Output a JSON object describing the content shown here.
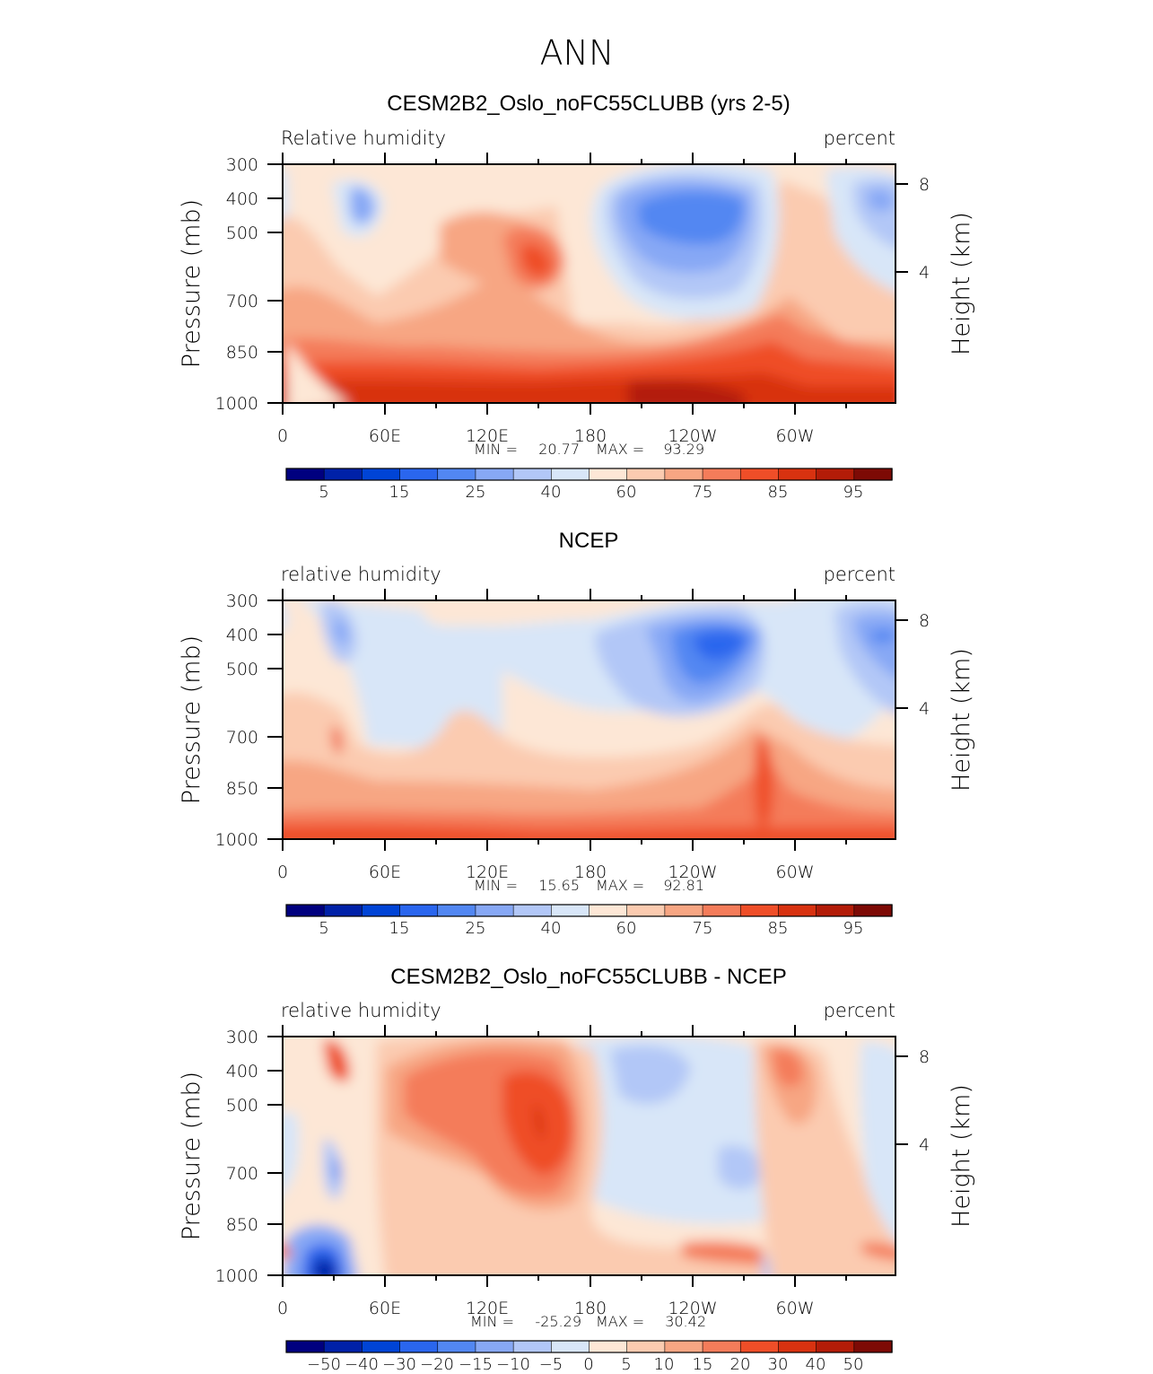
{
  "figure": {
    "title": "ANN"
  },
  "chart_data": [
    {
      "type": "heatmap",
      "title": "CESM2B2_Oslo_noFC55CLUBB (yrs 2-5)",
      "left_label": "Relative  humidity",
      "right_label": "percent",
      "ylabel": "Pressure  (mb)",
      "ylabel_right": "Height  (km)",
      "x_ticks": [
        "0",
        "60E",
        "120E",
        "180",
        "120W",
        "60W"
      ],
      "y_ticks": [
        "300",
        "400",
        "500",
        "700",
        "850",
        "1000"
      ],
      "height_ticks": [
        "8",
        "4"
      ],
      "min_label": "MIN =",
      "min": "20.77",
      "max_label": "MAX =",
      "max": "93.29",
      "colorbar_labels": [
        "5",
        "15",
        "25",
        "40",
        "60",
        "75",
        "85",
        "95"
      ],
      "colors": [
        "#00007f",
        "#0021a8",
        "#0044d6",
        "#2a66ee",
        "#5287f2",
        "#87a8f5",
        "#b2c7f7",
        "#d8e6f8",
        "#fde7d6",
        "#fbcbb0",
        "#f7a683",
        "#f47c5a",
        "#ef4e28",
        "#d83210",
        "#b31c08",
        "#7d0a05"
      ]
    },
    {
      "type": "heatmap",
      "title": "NCEP",
      "left_label": "relative  humidity",
      "right_label": "percent",
      "ylabel": "Pressure  (mb)",
      "ylabel_right": "Height  (km)",
      "x_ticks": [
        "0",
        "60E",
        "120E",
        "180",
        "120W",
        "60W"
      ],
      "y_ticks": [
        "300",
        "400",
        "500",
        "700",
        "850",
        "1000"
      ],
      "height_ticks": [
        "8",
        "4"
      ],
      "min_label": "MIN =",
      "min": "15.65",
      "max_label": "MAX =",
      "max": "92.81",
      "colorbar_labels": [
        "5",
        "15",
        "25",
        "40",
        "60",
        "75",
        "85",
        "95"
      ],
      "colors": [
        "#00007f",
        "#0021a8",
        "#0044d6",
        "#2a66ee",
        "#5287f2",
        "#87a8f5",
        "#b2c7f7",
        "#d8e6f8",
        "#fde7d6",
        "#fbcbb0",
        "#f7a683",
        "#f47c5a",
        "#ef4e28",
        "#d83210",
        "#b31c08",
        "#7d0a05"
      ]
    },
    {
      "type": "heatmap",
      "title": "CESM2B2_Oslo_noFC55CLUBB - NCEP",
      "left_label": "relative  humidity",
      "right_label": "percent",
      "ylabel": "Pressure  (mb)",
      "ylabel_right": "Height  (km)",
      "x_ticks": [
        "0",
        "60E",
        "120E",
        "180",
        "120W",
        "60W"
      ],
      "y_ticks": [
        "300",
        "400",
        "500",
        "700",
        "850",
        "1000"
      ],
      "height_ticks": [
        "8",
        "4"
      ],
      "min_label": "MIN =",
      "min": "-25.29",
      "max_label": "MAX =",
      "max": "30.42",
      "colorbar_labels": [
        "−50",
        "−40",
        "−30",
        "−20",
        "−15",
        "−10",
        "−5",
        "0",
        "5",
        "10",
        "15",
        "20",
        "30",
        "40",
        "50"
      ],
      "colors": [
        "#00007f",
        "#0021a8",
        "#0044d6",
        "#2a66ee",
        "#5287f2",
        "#87a8f5",
        "#b2c7f7",
        "#d8e6f8",
        "#fde7d6",
        "#fbcbb0",
        "#f7a683",
        "#f47c5a",
        "#ef4e28",
        "#d83210",
        "#b31c08",
        "#7d0a05"
      ]
    }
  ]
}
